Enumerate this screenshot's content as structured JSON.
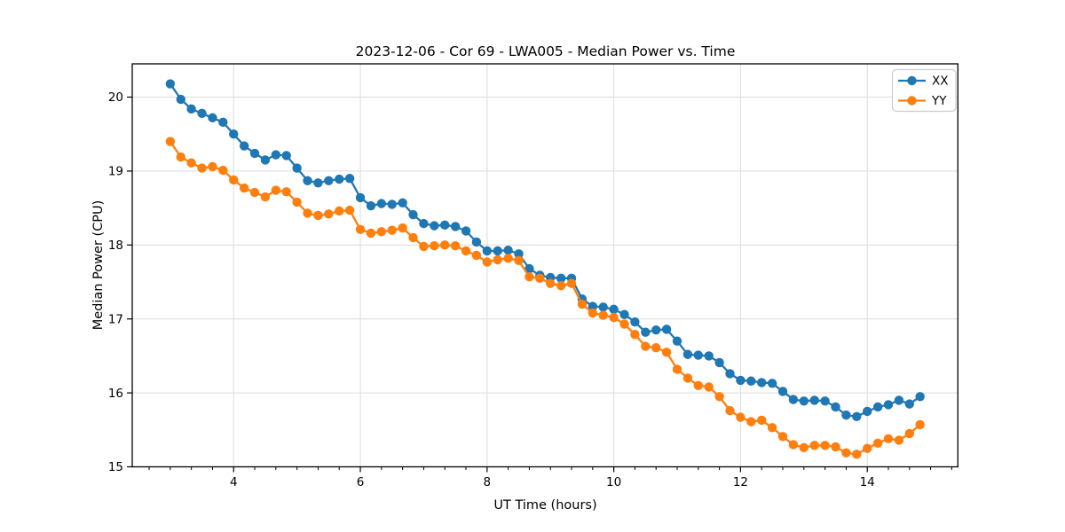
{
  "figure": {
    "title": "2023-12-06 - Cor 69 - LWA005 - Median Power vs. Time",
    "xlabel": "UT Time (hours)",
    "ylabel": "Median Power (CPU)"
  },
  "chart_data": {
    "type": "line",
    "title": "2023-12-06 - Cor 69 - LWA005 - Median Power vs. Time",
    "xlabel": "UT Time (hours)",
    "ylabel": "Median Power (CPU)",
    "xlim": [
      2.4,
      15.43
    ],
    "ylim": [
      15.0,
      20.45
    ],
    "x_major_ticks": [
      4,
      6,
      8,
      10,
      12,
      14
    ],
    "x_minor_step": 0.33333,
    "y_major_ticks": [
      15,
      16,
      17,
      18,
      19,
      20
    ],
    "grid": true,
    "grid_color": "#dcdcdc",
    "legend_position": "upper right",
    "x": [
      3.0,
      3.167,
      3.333,
      3.5,
      3.667,
      3.833,
      4.0,
      4.167,
      4.333,
      4.5,
      4.667,
      4.833,
      5.0,
      5.167,
      5.333,
      5.5,
      5.667,
      5.833,
      6.0,
      6.167,
      6.333,
      6.5,
      6.667,
      6.833,
      7.0,
      7.167,
      7.333,
      7.5,
      7.667,
      7.833,
      8.0,
      8.167,
      8.333,
      8.5,
      8.667,
      8.833,
      9.0,
      9.167,
      9.333,
      9.5,
      9.667,
      9.833,
      10.0,
      10.167,
      10.333,
      10.5,
      10.667,
      10.833,
      11.0,
      11.167,
      11.333,
      11.5,
      11.667,
      11.833,
      12.0,
      12.167,
      12.333,
      12.5,
      12.667,
      12.833,
      13.0,
      13.167,
      13.333,
      13.5,
      13.667,
      13.833,
      14.0,
      14.167,
      14.333,
      14.5,
      14.667,
      14.833
    ],
    "series": [
      {
        "name": "XX",
        "color": "#1f77b4",
        "values": [
          20.18,
          19.97,
          19.84,
          19.78,
          19.72,
          19.66,
          19.5,
          19.34,
          19.24,
          19.15,
          19.22,
          19.21,
          19.04,
          18.87,
          18.84,
          18.87,
          18.89,
          18.9,
          18.64,
          18.53,
          18.56,
          18.55,
          18.57,
          18.41,
          18.29,
          18.26,
          18.27,
          18.25,
          18.19,
          18.04,
          17.92,
          17.92,
          17.93,
          17.88,
          17.68,
          17.59,
          17.56,
          17.55,
          17.55,
          17.27,
          17.17,
          17.16,
          17.13,
          17.06,
          16.96,
          16.82,
          16.85,
          16.86,
          16.7,
          16.52,
          16.51,
          16.5,
          16.41,
          16.26,
          16.17,
          16.16,
          16.14,
          16.13,
          16.02,
          15.91,
          15.89,
          15.9,
          15.89,
          15.81,
          15.7,
          15.68,
          15.75,
          15.81,
          15.84,
          15.9,
          15.85,
          15.95
        ]
      },
      {
        "name": "YY",
        "color": "#ff7f0e",
        "values": [
          19.4,
          19.19,
          19.11,
          19.04,
          19.06,
          19.01,
          18.88,
          18.77,
          18.71,
          18.65,
          18.74,
          18.72,
          18.58,
          18.43,
          18.4,
          18.42,
          18.46,
          18.47,
          18.21,
          18.16,
          18.18,
          18.2,
          18.23,
          18.1,
          17.98,
          17.99,
          18.0,
          17.99,
          17.92,
          17.86,
          17.77,
          17.8,
          17.82,
          17.79,
          17.57,
          17.55,
          17.48,
          17.45,
          17.48,
          17.2,
          17.08,
          17.05,
          17.02,
          16.93,
          16.79,
          16.63,
          16.61,
          16.55,
          16.32,
          16.2,
          16.1,
          16.08,
          15.95,
          15.76,
          15.67,
          15.61,
          15.63,
          15.53,
          15.41,
          15.3,
          15.26,
          15.29,
          15.29,
          15.27,
          15.19,
          15.17,
          15.25,
          15.32,
          15.38,
          15.36,
          15.45,
          15.57
        ]
      }
    ]
  }
}
